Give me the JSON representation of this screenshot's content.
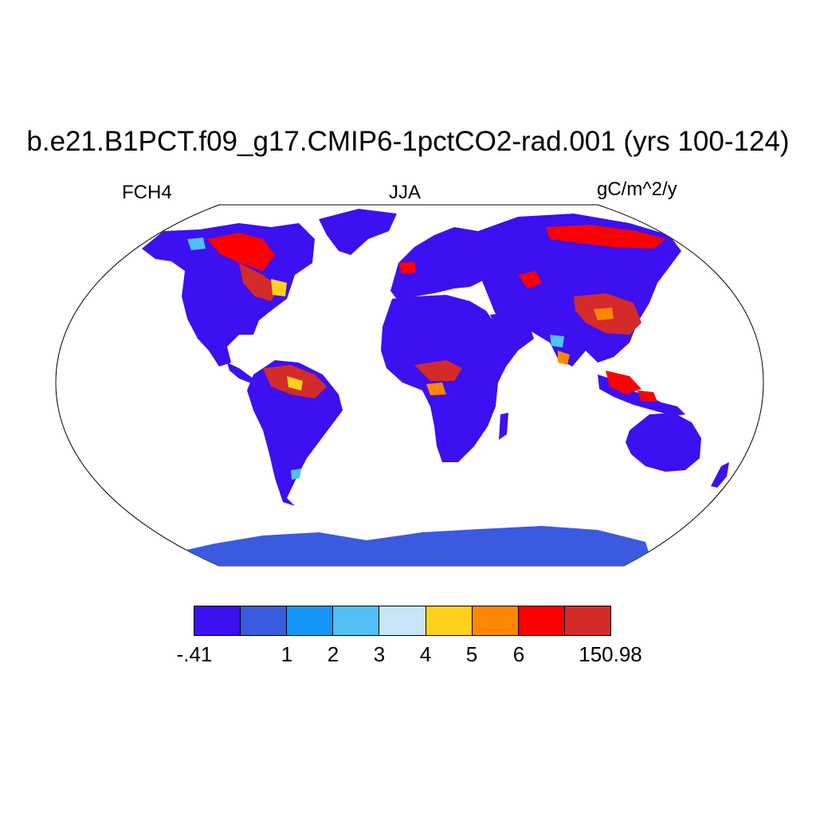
{
  "title": "b.e21.B1PCT.f09_g17.CMIP6-1pctCO2-rad.001 (yrs 100-124)",
  "variable": "FCH4",
  "season": "JJA",
  "units": "gC/m^2/y",
  "colorbar": {
    "colors": [
      "#3c10f0",
      "#3a5ae0",
      "#1596f7",
      "#50c0f5",
      "#c8e6f8",
      "#ffd11e",
      "#ff8700",
      "#ff0000",
      "#d42a2a"
    ],
    "labels": [
      "-.41",
      "1",
      "2",
      "3",
      "4",
      "5",
      "6",
      "150.98"
    ]
  },
  "map": {
    "projection": "Robinson",
    "ocean_color": "#ffffff",
    "land_base_color": "#3c10f0",
    "antarctica_color": "#3a5ae0"
  }
}
